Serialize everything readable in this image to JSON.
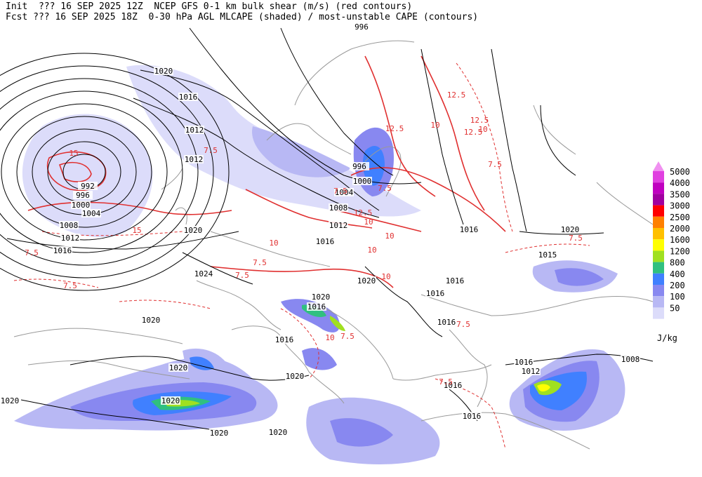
{
  "header": {
    "line1": "Init  ??? 16 SEP 2025 12Z  NCEP GFS 0-1 km bulk shear (m/s) (red contours)",
    "line2": "Fcst ??? 16 SEP 2025 18Z  0-30 hPa AGL MLCAPE (shaded) / most-unstable CAPE (contours)"
  },
  "legend": {
    "levels": [
      5000,
      4000,
      3500,
      3000,
      2500,
      2000,
      1600,
      1200,
      800,
      400,
      200,
      100,
      50
    ],
    "colors": [
      "#e040e0",
      "#c000c0",
      "#a000a0",
      "#ff0000",
      "#ff8000",
      "#ffc000",
      "#ffff00",
      "#a0e020",
      "#30c080",
      "#4080ff",
      "#8888f0",
      "#b8b8f4",
      "#dcdcfa"
    ],
    "unit": "J/kg"
  },
  "isobar_labels": [
    "996",
    "1020",
    "1016",
    "1012",
    "1012",
    "992",
    "996",
    "1000",
    "1004",
    "1008",
    "1012",
    "1016",
    "1020",
    "996",
    "1000",
    "1004",
    "1008",
    "1012",
    "1016",
    "1016",
    "1020",
    "1015",
    "1024",
    "1020",
    "1016",
    "1016",
    "1020",
    "1016",
    "1016",
    "1016",
    "1020",
    "1020",
    "1020",
    "1016",
    "1012",
    "1008",
    "1016",
    "1016",
    "1020",
    "1020",
    "1020",
    "1020"
  ],
  "shear_labels": [
    "7.5",
    "15",
    "7.5",
    "7.5",
    "12.5",
    "12.5",
    "10",
    "12.5",
    "12.5",
    "10",
    "7.5",
    "15",
    "10",
    "7.5",
    "7.5",
    "7.5",
    "10",
    "10",
    "10",
    "7.5",
    "7.5",
    "7.5",
    "10",
    "7.5",
    "10",
    "12.5",
    "7.5"
  ]
}
